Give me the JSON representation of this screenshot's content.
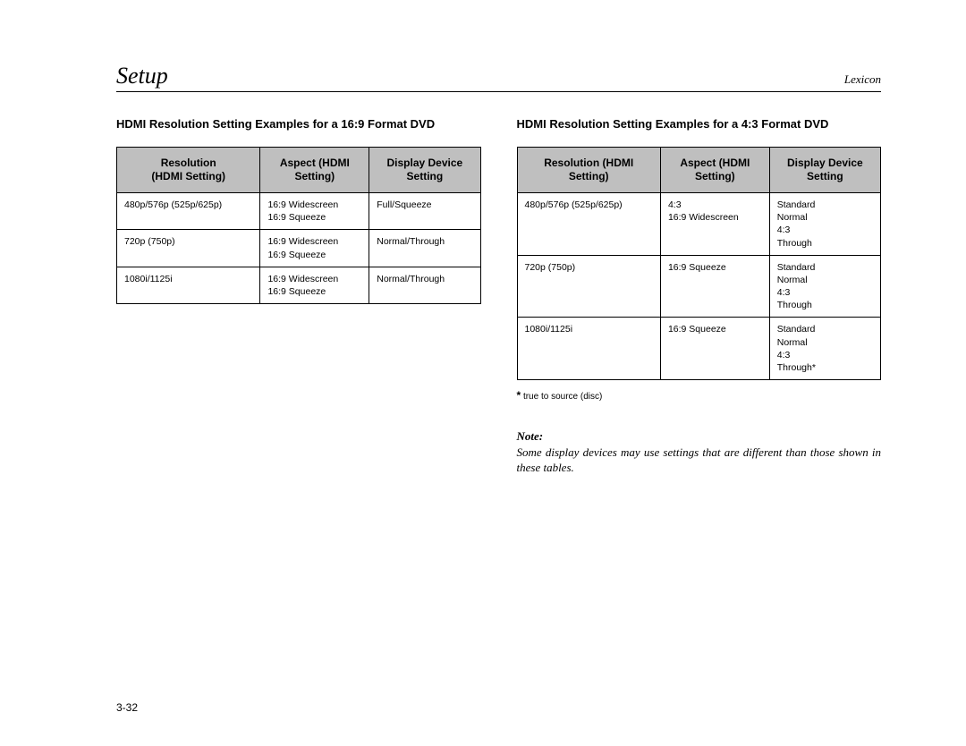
{
  "header": {
    "title": "Setup",
    "brand": "Lexicon"
  },
  "left": {
    "caption": "HDMI Resolution Setting Examples for a 16:9 Format DVD",
    "headers": {
      "c1a": "Resolution",
      "c1b": "(HDMI Setting)",
      "c2a": "Aspect (HDMI",
      "c2b": "Setting)",
      "c3a": "Display Device",
      "c3b": "Setting"
    },
    "rows": [
      {
        "res": "480p/576p (525p/625p)",
        "asp1": "16:9 Widescreen",
        "asp2": "16:9 Squeeze",
        "dev": "Full/Squeeze"
      },
      {
        "res": "720p (750p)",
        "asp1": "16:9 Widescreen",
        "asp2": "16:9 Squeeze",
        "dev": "Normal/Through"
      },
      {
        "res": "1080i/1125i",
        "asp1": "16:9 Widescreen",
        "asp2": "16:9 Squeeze",
        "dev": "Normal/Through"
      }
    ]
  },
  "right": {
    "caption": "HDMI Resolution Setting Examples for a 4:3 Format DVD",
    "headers": {
      "c1a": "Resolution (HDMI",
      "c1b": "Setting)",
      "c2a": "Aspect (HDMI",
      "c2b": "Setting)",
      "c3a": "Display Device",
      "c3b": "Setting"
    },
    "rows": [
      {
        "res": "480p/576p (525p/625p)",
        "asp1": "4:3",
        "asp2": "16:9 Widescreen",
        "dev1": "Standard",
        "dev2": "Normal",
        "dev3": "4:3",
        "dev4": "Through"
      },
      {
        "res": "720p (750p)",
        "asp1": "16:9 Squeeze",
        "asp2": "",
        "dev1": "Standard",
        "dev2": "Normal",
        "dev3": "4:3",
        "dev4": "Through"
      },
      {
        "res": "1080i/1125i",
        "asp1": "16:9 Squeeze",
        "asp2": "",
        "dev1": "Standard",
        "dev2": "Normal",
        "dev3": "4:3",
        "dev4": "Through*"
      }
    ],
    "footnote_star": "*",
    "footnote_text": " true to source (disc)"
  },
  "note": {
    "label": "Note:",
    "body": "Some display devices may use settings that are different than those shown in these tables."
  },
  "page_number": "3-32"
}
